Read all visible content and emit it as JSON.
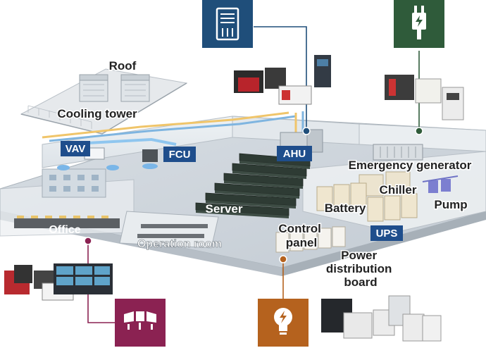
{
  "labels": {
    "roof": "Roof",
    "cooling_tower": "Cooling tower",
    "vav": "VAV",
    "fcu": "FCU",
    "ahu": "AHU",
    "emergency_generator": "Emergency generator",
    "chiller": "Chiller",
    "pump": "Pump",
    "battery": "Battery",
    "server": "Server",
    "ups": "UPS",
    "control_panel": "Control\npanel",
    "office": "Office",
    "operation_room": "Operation room",
    "power_distribution_board": "Power\ndistribution\nboard"
  },
  "icons": {
    "hvac": "air-handling-unit-icon",
    "power": "power-plug-icon",
    "monitoring": "monitor-wall-icon",
    "lighting": "lightbulb-icon"
  },
  "colors": {
    "hvac": "#1f4e7a",
    "power": "#2f5b3a",
    "monitoring": "#8b2252",
    "lighting": "#b5621e",
    "badge": "#1f4e8c"
  }
}
